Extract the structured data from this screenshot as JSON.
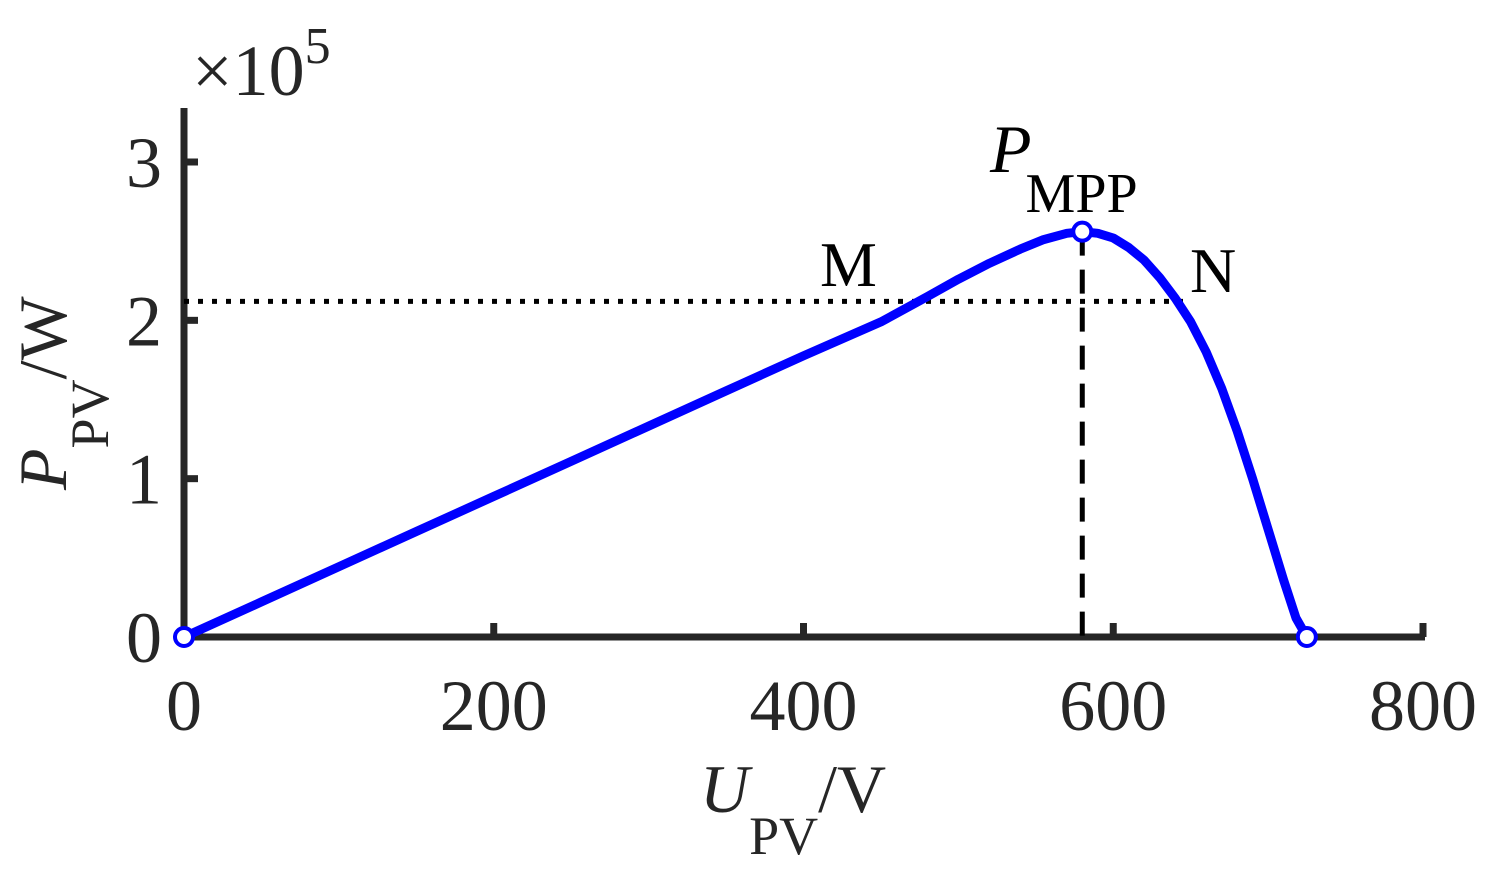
{
  "chart_data": {
    "type": "line",
    "xlabel": {
      "main": "U",
      "sub": "PV",
      "unit": "/V"
    },
    "ylabel": {
      "main": "P",
      "sub": "PV",
      "unit": "/W"
    },
    "y_multiplier": {
      "prefix": "×10",
      "exponent": "5"
    },
    "xlim": [
      0,
      800
    ],
    "ylim": [
      0,
      3.3
    ],
    "y_scale_factor": 100000,
    "xticks": [
      0,
      200,
      400,
      600,
      800
    ],
    "yticks": [
      0,
      1,
      2,
      3
    ],
    "xtick_labels": [
      "0",
      "200",
      "400",
      "600",
      "800"
    ],
    "ytick_labels": [
      "0",
      "1",
      "2",
      "3"
    ],
    "grid": false,
    "series": [
      {
        "color": "#0000ff",
        "points": [
          [
            0,
            0
          ],
          [
            50,
            0.222
          ],
          [
            100,
            0.444
          ],
          [
            150,
            0.666
          ],
          [
            200,
            0.888
          ],
          [
            250,
            1.11
          ],
          [
            300,
            1.332
          ],
          [
            350,
            1.554
          ],
          [
            400,
            1.776
          ],
          [
            450,
            1.99
          ],
          [
            480,
            2.15
          ],
          [
            500,
            2.26
          ],
          [
            520,
            2.36
          ],
          [
            540,
            2.45
          ],
          [
            555,
            2.51
          ],
          [
            570,
            2.55
          ],
          [
            580,
            2.56
          ],
          [
            590,
            2.55
          ],
          [
            600,
            2.52
          ],
          [
            610,
            2.46
          ],
          [
            620,
            2.38
          ],
          [
            630,
            2.27
          ],
          [
            640,
            2.14
          ],
          [
            650,
            1.99
          ],
          [
            660,
            1.8
          ],
          [
            670,
            1.57
          ],
          [
            680,
            1.3
          ],
          [
            690,
            1.0
          ],
          [
            700,
            0.68
          ],
          [
            710,
            0.36
          ],
          [
            718,
            0.12
          ],
          [
            725,
            0
          ]
        ]
      }
    ],
    "markers": [
      {
        "name": "origin",
        "x": 0,
        "y": 0
      },
      {
        "name": "mpp",
        "x": 580,
        "y": 2.56
      },
      {
        "name": "voc",
        "x": 725,
        "y": 0
      }
    ],
    "reference_lines": {
      "horizontal_dotted_y": 2.12,
      "vertical_dashed_x": 580
    },
    "annotations": {
      "mpp_main": "P",
      "mpp_sub": "MPP",
      "point_m": "M",
      "point_n": "N"
    }
  }
}
